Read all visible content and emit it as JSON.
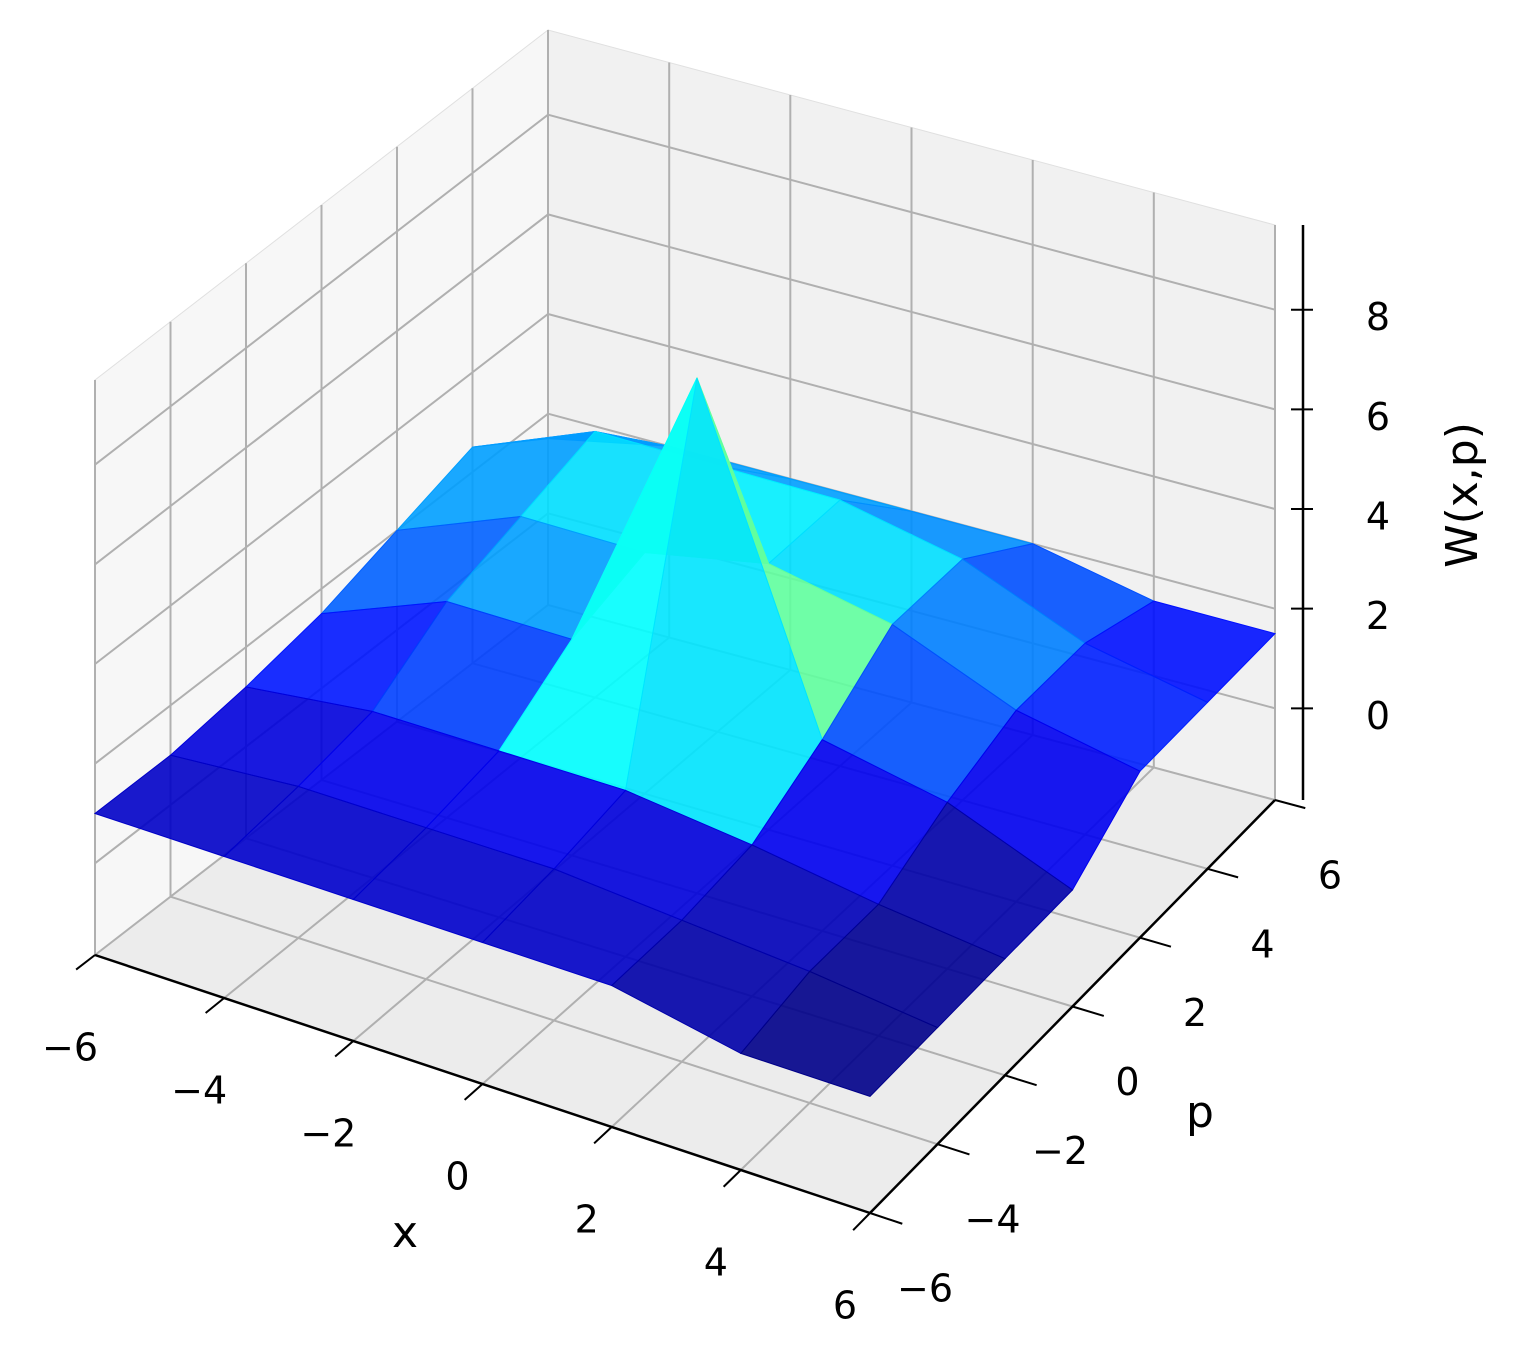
{
  "chart_data": {
    "type": "surface",
    "x_label": "x",
    "y_label": "p",
    "z_label": "W(x,p)",
    "colormap": "jet",
    "grid": true,
    "x": [
      -6,
      -4,
      -2,
      0,
      2,
      4,
      6
    ],
    "y": [
      -6,
      -4,
      -2,
      0,
      2,
      4,
      6
    ],
    "z": [
      [
        1,
        1,
        1,
        1,
        1,
        0.5,
        0.5
      ],
      [
        1,
        1.2,
        1.2,
        1.2,
        1,
        0.8,
        0.5
      ],
      [
        1.2,
        1.5,
        1.5,
        1.5,
        1.2,
        0.8,
        0.5
      ],
      [
        1.5,
        2.5,
        2.5,
        8.5,
        2,
        1.5,
        0.5
      ],
      [
        2,
        3,
        3,
        3.5,
        3,
        2,
        1.5
      ],
      [
        2.5,
        3.5,
        3.5,
        3.5,
        3,
        2,
        1.5
      ],
      [
        1.5,
        2,
        2,
        2,
        2,
        1.5,
        1.5
      ]
    ],
    "xlim": [
      -6,
      6
    ],
    "ylim": [
      -6,
      6
    ],
    "zlim": [
      -1.84,
      9.7
    ],
    "xticks": [
      {
        "value": -6,
        "label": "−6"
      },
      {
        "value": -4,
        "label": "−4"
      },
      {
        "value": -2,
        "label": "−2"
      },
      0,
      2,
      4,
      6
    ],
    "yticks": [
      {
        "value": -6,
        "label": "−6"
      },
      {
        "value": -4,
        "label": "−4"
      },
      {
        "value": -2,
        "label": "−2"
      },
      0,
      2,
      4,
      6
    ],
    "zticks": [
      0,
      2,
      4,
      6,
      8
    ]
  }
}
